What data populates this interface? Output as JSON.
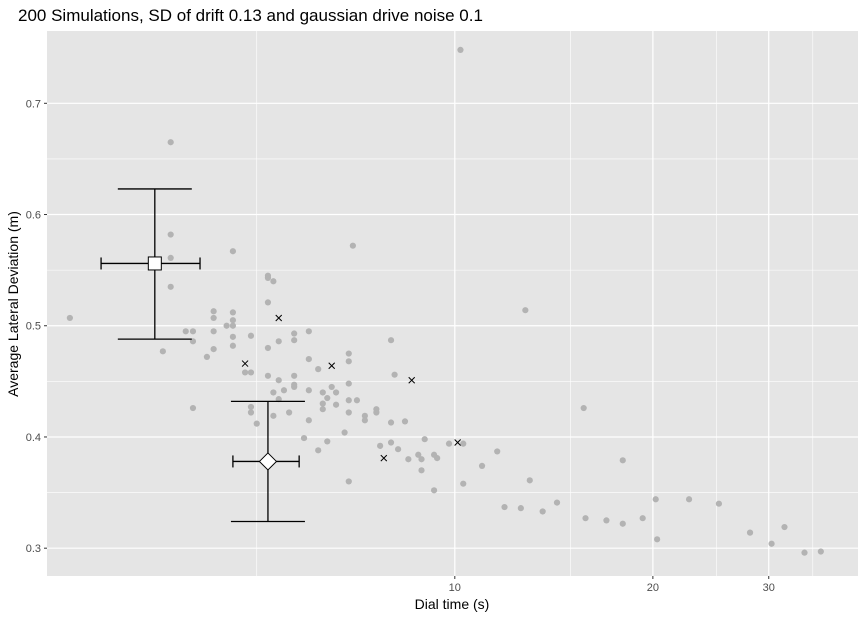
{
  "chart_data": {
    "type": "scatter",
    "title": "200 Simulations, SD of drift 0.13 and gaussian drive noise 0.1",
    "xlabel": "Dial time (s)",
    "ylabel": "Average Lateral Deviation (m)",
    "x_scale": "log",
    "xlim": [
      2.4,
      41
    ],
    "ylim": [
      0.275,
      0.765
    ],
    "x_ticks": [
      10,
      20,
      30
    ],
    "x_minor_ticks": [
      5,
      15,
      25,
      35
    ],
    "y_ticks": [
      0.3,
      0.4,
      0.5,
      0.6,
      0.7
    ],
    "grid": true,
    "background": "#e5e5e5",
    "grid_color": "#ffffff",
    "point_color": "#b3b3b3",
    "cross_color": "#000000",
    "series": [
      {
        "marker": "dot",
        "points": [
          [
            2.6,
            0.507
          ],
          [
            3.7,
            0.665
          ],
          [
            3.7,
            0.582
          ],
          [
            3.7,
            0.561
          ],
          [
            3.7,
            0.535
          ],
          [
            3.6,
            0.477
          ],
          [
            3.9,
            0.495
          ],
          [
            4.0,
            0.495
          ],
          [
            4.0,
            0.486
          ],
          [
            4.0,
            0.426
          ],
          [
            4.2,
            0.472
          ],
          [
            4.3,
            0.513
          ],
          [
            4.3,
            0.507
          ],
          [
            4.3,
            0.495
          ],
          [
            4.3,
            0.479
          ],
          [
            4.5,
            0.5
          ],
          [
            4.6,
            0.567
          ],
          [
            4.6,
            0.512
          ],
          [
            4.6,
            0.505
          ],
          [
            4.6,
            0.5
          ],
          [
            4.6,
            0.49
          ],
          [
            4.6,
            0.482
          ],
          [
            4.8,
            0.458
          ],
          [
            4.9,
            0.491
          ],
          [
            4.9,
            0.458
          ],
          [
            4.9,
            0.427
          ],
          [
            4.9,
            0.422
          ],
          [
            5.0,
            0.412
          ],
          [
            5.2,
            0.545
          ],
          [
            5.2,
            0.543
          ],
          [
            5.2,
            0.521
          ],
          [
            5.2,
            0.48
          ],
          [
            5.2,
            0.455
          ],
          [
            5.3,
            0.54
          ],
          [
            5.3,
            0.44
          ],
          [
            5.3,
            0.419
          ],
          [
            5.4,
            0.486
          ],
          [
            5.4,
            0.451
          ],
          [
            5.4,
            0.434
          ],
          [
            5.5,
            0.442
          ],
          [
            5.6,
            0.422
          ],
          [
            5.7,
            0.493
          ],
          [
            5.7,
            0.487
          ],
          [
            5.7,
            0.455
          ],
          [
            5.7,
            0.447
          ],
          [
            5.7,
            0.445
          ],
          [
            5.9,
            0.399
          ],
          [
            6.0,
            0.495
          ],
          [
            6.0,
            0.47
          ],
          [
            6.0,
            0.442
          ],
          [
            6.0,
            0.415
          ],
          [
            6.2,
            0.461
          ],
          [
            6.2,
            0.388
          ],
          [
            6.3,
            0.44
          ],
          [
            6.3,
            0.43
          ],
          [
            6.3,
            0.425
          ],
          [
            6.4,
            0.435
          ],
          [
            6.4,
            0.396
          ],
          [
            6.5,
            0.445
          ],
          [
            6.6,
            0.44
          ],
          [
            6.6,
            0.429
          ],
          [
            6.8,
            0.404
          ],
          [
            6.9,
            0.475
          ],
          [
            6.9,
            0.468
          ],
          [
            6.9,
            0.448
          ],
          [
            6.9,
            0.433
          ],
          [
            6.9,
            0.422
          ],
          [
            6.9,
            0.36
          ],
          [
            7.0,
            0.572
          ],
          [
            7.1,
            0.433
          ],
          [
            7.3,
            0.419
          ],
          [
            7.3,
            0.415
          ],
          [
            7.6,
            0.425
          ],
          [
            7.6,
            0.422
          ],
          [
            7.7,
            0.392
          ],
          [
            8.0,
            0.487
          ],
          [
            8.0,
            0.413
          ],
          [
            8.0,
            0.395
          ],
          [
            8.1,
            0.456
          ],
          [
            8.2,
            0.389
          ],
          [
            8.4,
            0.414
          ],
          [
            8.5,
            0.38
          ],
          [
            8.8,
            0.384
          ],
          [
            8.9,
            0.38
          ],
          [
            8.9,
            0.37
          ],
          [
            9.0,
            0.398
          ],
          [
            9.3,
            0.384
          ],
          [
            9.3,
            0.352
          ],
          [
            9.4,
            0.381
          ],
          [
            9.8,
            0.394
          ],
          [
            10.2,
            0.748
          ],
          [
            10.3,
            0.358
          ],
          [
            10.3,
            0.394
          ],
          [
            11.0,
            0.374
          ],
          [
            11.6,
            0.387
          ],
          [
            11.9,
            0.337
          ],
          [
            12.6,
            0.336
          ],
          [
            12.8,
            0.514
          ],
          [
            13.0,
            0.361
          ],
          [
            13.6,
            0.333
          ],
          [
            14.3,
            0.341
          ],
          [
            15.7,
            0.426
          ],
          [
            15.8,
            0.327
          ],
          [
            17.0,
            0.325
          ],
          [
            18.0,
            0.379
          ],
          [
            18.0,
            0.322
          ],
          [
            19.3,
            0.327
          ],
          [
            20.2,
            0.344
          ],
          [
            20.3,
            0.308
          ],
          [
            22.7,
            0.344
          ],
          [
            25.2,
            0.34
          ],
          [
            28.1,
            0.314
          ],
          [
            30.3,
            0.304
          ],
          [
            31.7,
            0.319
          ],
          [
            34.0,
            0.296
          ],
          [
            36.0,
            0.297
          ]
        ]
      },
      {
        "marker": "cross",
        "points": [
          [
            4.8,
            0.466
          ],
          [
            5.4,
            0.507
          ],
          [
            6.5,
            0.464
          ],
          [
            7.8,
            0.381
          ],
          [
            8.6,
            0.451
          ],
          [
            10.1,
            0.395
          ]
        ]
      }
    ],
    "summary_markers": [
      {
        "shape": "square",
        "x": 3.5,
        "y": 0.556,
        "x_err": [
          2.9,
          4.1
        ],
        "y_err": [
          0.488,
          0.623
        ]
      },
      {
        "shape": "diamond",
        "x": 5.2,
        "y": 0.378,
        "x_err": [
          4.6,
          5.8
        ],
        "y_err": [
          0.324,
          0.432
        ]
      }
    ]
  }
}
